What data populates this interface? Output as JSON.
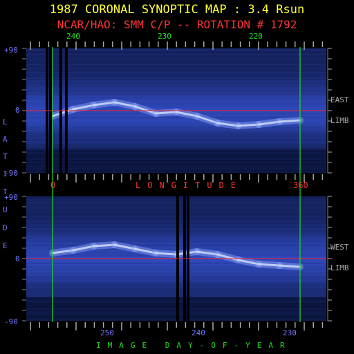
{
  "title": "1987 CORONAL SYNOPTIC MAP : 3.4 Rsun",
  "subtitle": "NCAR/HAO: SMM C/P -- ROTATION # 1792",
  "ylabel_letters": [
    "L",
    "A",
    "T",
    "I",
    "T",
    "U",
    "D",
    "E"
  ],
  "top_x_ticks": [
    "240",
    "230",
    "220"
  ],
  "longitude_label": "LONGITUDE",
  "longitude_ticks": [
    "0",
    "360"
  ],
  "day_ticks": [
    "250",
    "240",
    "230"
  ],
  "day_label": "IMAGE DAY-OF-YEAR",
  "lat_ticks_top": [
    "+90",
    "0",
    "-90"
  ],
  "lat_ticks_bottom": [
    "+90",
    "0",
    "-90"
  ],
  "limb_top": [
    "EAST",
    "LIMB"
  ],
  "limb_bottom": [
    "WEST",
    "LIMB"
  ],
  "colors": {
    "title": "#ffff33",
    "subtitle": "#ff3333",
    "axis_blue": "#7777ff",
    "tick_green": "#22dd22",
    "equator": "#ff2222",
    "marker": "#22dd22"
  },
  "chart_data": [
    {
      "type": "heatmap",
      "panel": "east-limb",
      "xlabel": "LONGITUDE",
      "ylabel": "LATITUDE",
      "xlim": [
        0,
        360
      ],
      "ylim": [
        -90,
        90
      ],
      "x_markers": [
        0,
        360
      ],
      "equator_line": 0,
      "bright_band": {
        "longitude": [
          0,
          30,
          60,
          90,
          120,
          150,
          180,
          210,
          240,
          270,
          300,
          330,
          360
        ],
        "latitude": [
          -8,
          2,
          8,
          12,
          6,
          -4,
          -2,
          -8,
          -18,
          -22,
          -20,
          -16,
          -14
        ]
      },
      "data_gaps_longitude": [
        -10,
        -5,
        10,
        18
      ]
    },
    {
      "type": "heatmap",
      "panel": "west-limb",
      "xlabel": "IMAGE DAY-OF-YEAR",
      "ylabel": "LATITUDE",
      "ylim": [
        -90,
        90
      ],
      "equator_line": 0,
      "bright_band": {
        "longitude": [
          0,
          30,
          60,
          90,
          120,
          150,
          180,
          210,
          240,
          270,
          300,
          330,
          360
        ],
        "latitude": [
          8,
          12,
          18,
          20,
          14,
          8,
          6,
          10,
          6,
          -2,
          -8,
          -10,
          -12
        ]
      },
      "data_gaps_longitude": [
        180,
        190,
        195
      ]
    }
  ]
}
